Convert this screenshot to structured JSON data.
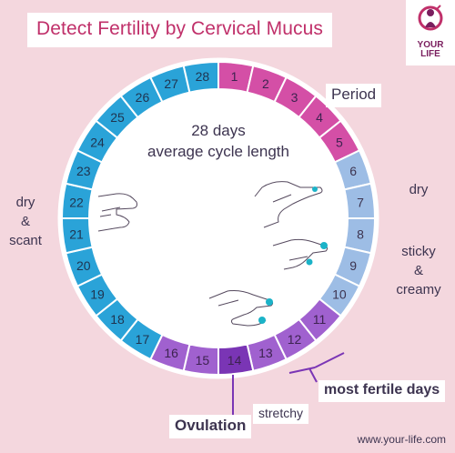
{
  "title": "Detect Fertility by Cervical Mucus",
  "logo": {
    "line1": "YOUR",
    "line2": "LIFE"
  },
  "center_text": {
    "line1": "28 days",
    "line2": "average cycle length"
  },
  "days": [
    {
      "n": "1",
      "color": "#d44fa6"
    },
    {
      "n": "2",
      "color": "#d44fa6"
    },
    {
      "n": "3",
      "color": "#d44fa6"
    },
    {
      "n": "4",
      "color": "#d44fa6"
    },
    {
      "n": "5",
      "color": "#d44fa6"
    },
    {
      "n": "6",
      "color": "#9dbde5"
    },
    {
      "n": "7",
      "color": "#9dbde5"
    },
    {
      "n": "8",
      "color": "#9dbde5"
    },
    {
      "n": "9",
      "color": "#9dbde5"
    },
    {
      "n": "10",
      "color": "#9dbde5"
    },
    {
      "n": "11",
      "color": "#a061cf"
    },
    {
      "n": "12",
      "color": "#a061cf"
    },
    {
      "n": "13",
      "color": "#a061cf"
    },
    {
      "n": "14",
      "color": "#7a35b5"
    },
    {
      "n": "15",
      "color": "#a061cf"
    },
    {
      "n": "16",
      "color": "#a061cf"
    },
    {
      "n": "17",
      "color": "#2aa3d8"
    },
    {
      "n": "18",
      "color": "#2aa3d8"
    },
    {
      "n": "19",
      "color": "#2aa3d8"
    },
    {
      "n": "20",
      "color": "#2aa3d8"
    },
    {
      "n": "21",
      "color": "#2aa3d8"
    },
    {
      "n": "22",
      "color": "#2aa3d8"
    },
    {
      "n": "23",
      "color": "#2aa3d8"
    },
    {
      "n": "24",
      "color": "#2aa3d8"
    },
    {
      "n": "25",
      "color": "#2aa3d8"
    },
    {
      "n": "26",
      "color": "#2aa3d8"
    },
    {
      "n": "27",
      "color": "#2aa3d8"
    },
    {
      "n": "28",
      "color": "#2aa3d8"
    }
  ],
  "labels": {
    "period": "Period",
    "dry_scant": "dry\n&\nscant",
    "dry": "dry",
    "sticky_creamy": "sticky\n&\ncreamy",
    "most_fertile": "most fertile days",
    "stretchy": "stretchy",
    "ovulation": "Ovulation"
  },
  "footer": "www.your-life.com",
  "colors": {
    "background": "#f4d7de",
    "title": "#c0306a",
    "text": "#3d3450",
    "hand_fill": "#ffffff",
    "mucus": "#1bb3c8"
  }
}
